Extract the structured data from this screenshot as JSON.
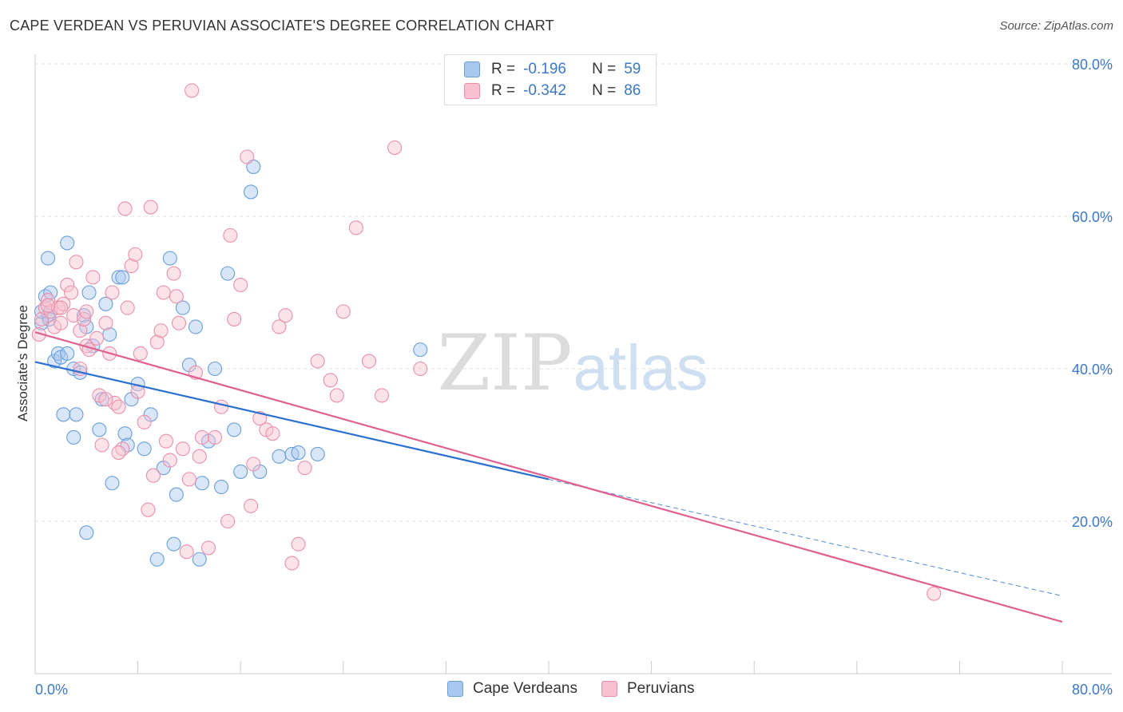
{
  "title": "CAPE VERDEAN VS PERUVIAN ASSOCIATE'S DEGREE CORRELATION CHART",
  "source": "Source: ZipAtlas.com",
  "watermark": {
    "zip": "ZIP",
    "atlas": "atlas"
  },
  "legend": {
    "r_label": "R =",
    "n_label": "N =",
    "rows": [
      {
        "r": "-0.196",
        "n": "59",
        "color": "#a8c8f0",
        "border": "#6a9fd8"
      },
      {
        "r": "-0.342",
        "n": "86",
        "color": "#f8c0d0",
        "border": "#e890aa"
      }
    ]
  },
  "bottom_legend": [
    {
      "label": "Cape Verdeans",
      "color": "#a8c8f0",
      "border": "#6a9fd8"
    },
    {
      "label": "Peruvians",
      "color": "#f8c0d0",
      "border": "#e890aa"
    }
  ],
  "chart_data": {
    "type": "scatter",
    "ylabel": "Associate's Degree",
    "xlim": [
      0,
      80
    ],
    "ylim": [
      0,
      80
    ],
    "x_tick_labels": [
      "0.0%",
      "80.0%"
    ],
    "y_ticks": [
      20,
      40,
      60,
      80
    ],
    "y_tick_labels": [
      "20.0%",
      "40.0%",
      "60.0%",
      "80.0%"
    ],
    "grid": true,
    "series": [
      {
        "name": "Cape Verdeans",
        "color": "#6a9fd8",
        "fill": "#a8c8f0",
        "line_color": "#2b6fd0",
        "trend": {
          "x0": 0,
          "y0": 40.9,
          "x1": 40,
          "y1": 25.5,
          "dash_to_x": 80,
          "dash_to_y": 10.2
        },
        "points": [
          [
            0.5,
            46
          ],
          [
            0.8,
            49.5
          ],
          [
            1,
            47
          ],
          [
            1.1,
            46.5
          ],
          [
            1.2,
            50
          ],
          [
            1.5,
            41
          ],
          [
            1,
            54.5
          ],
          [
            1.8,
            42
          ],
          [
            2,
            41.5
          ],
          [
            2.5,
            56.5
          ],
          [
            2.2,
            34
          ],
          [
            3,
            40
          ],
          [
            3.5,
            39.5
          ],
          [
            2.5,
            42
          ],
          [
            3.8,
            47
          ],
          [
            4,
            45.5
          ],
          [
            3.2,
            34
          ],
          [
            3,
            31
          ],
          [
            4.2,
            50
          ],
          [
            4.5,
            43
          ],
          [
            5,
            32
          ],
          [
            5.2,
            36
          ],
          [
            5.5,
            48.5
          ],
          [
            5.8,
            44.5
          ],
          [
            6,
            25
          ],
          [
            4,
            18.5
          ],
          [
            6.5,
            52
          ],
          [
            6.8,
            52
          ],
          [
            7,
            31.5
          ],
          [
            7.2,
            30
          ],
          [
            7.5,
            36
          ],
          [
            8,
            38
          ],
          [
            8.5,
            29.5
          ],
          [
            9,
            34
          ],
          [
            9.5,
            15
          ],
          [
            10,
            27
          ],
          [
            10.5,
            54.5
          ],
          [
            10.8,
            17
          ],
          [
            11,
            23.5
          ],
          [
            11.5,
            48
          ],
          [
            12,
            40.5
          ],
          [
            12.5,
            45.5
          ],
          [
            12.8,
            15
          ],
          [
            13,
            25
          ],
          [
            13.5,
            30.5
          ],
          [
            14,
            40
          ],
          [
            14.5,
            24.5
          ],
          [
            15,
            52.5
          ],
          [
            15.5,
            32
          ],
          [
            16,
            26.5
          ],
          [
            17,
            66.5
          ],
          [
            16.8,
            63.2
          ],
          [
            17.5,
            26.5
          ],
          [
            19,
            28.5
          ],
          [
            20,
            28.8
          ],
          [
            20.5,
            29
          ],
          [
            22,
            28.8
          ],
          [
            30,
            42.5
          ],
          [
            0.5,
            47.5
          ]
        ]
      },
      {
        "name": "Peruvians",
        "color": "#e890aa",
        "fill": "#f8c0d0",
        "line_color": "#e06090",
        "trend": {
          "x0": 0,
          "y0": 44.8,
          "x1": 80,
          "y1": 6.8
        },
        "points": [
          [
            0.3,
            44.5
          ],
          [
            0.5,
            46.5
          ],
          [
            0.8,
            48
          ],
          [
            1,
            49
          ],
          [
            1.2,
            47.5
          ],
          [
            1.5,
            45.5
          ],
          [
            1.8,
            48
          ],
          [
            2,
            46
          ],
          [
            2.2,
            48.5
          ],
          [
            2.5,
            51
          ],
          [
            2.8,
            50
          ],
          [
            3,
            47
          ],
          [
            3.2,
            54
          ],
          [
            3.5,
            45
          ],
          [
            3.8,
            46.5
          ],
          [
            4,
            43
          ],
          [
            4.2,
            42.5
          ],
          [
            4.5,
            52
          ],
          [
            4.8,
            44
          ],
          [
            5,
            36.5
          ],
          [
            5.2,
            30
          ],
          [
            5.5,
            46
          ],
          [
            5.8,
            42
          ],
          [
            6,
            50
          ],
          [
            6.2,
            35.5
          ],
          [
            6.5,
            35
          ],
          [
            6.8,
            29.5
          ],
          [
            7,
            61
          ],
          [
            7.2,
            48
          ],
          [
            7.5,
            53.5
          ],
          [
            7.8,
            55
          ],
          [
            8,
            37
          ],
          [
            8.2,
            42
          ],
          [
            8.5,
            33
          ],
          [
            8.8,
            21.5
          ],
          [
            9,
            61.2
          ],
          [
            9.2,
            26
          ],
          [
            9.5,
            43.5
          ],
          [
            9.8,
            45
          ],
          [
            10,
            50
          ],
          [
            10.2,
            30.5
          ],
          [
            10.5,
            28
          ],
          [
            10.8,
            52.5
          ],
          [
            11,
            49.5
          ],
          [
            11.2,
            46
          ],
          [
            11.5,
            29.5
          ],
          [
            11.8,
            16
          ],
          [
            12,
            25.5
          ],
          [
            12.2,
            76.5
          ],
          [
            12.5,
            39.5
          ],
          [
            12.8,
            28.5
          ],
          [
            13,
            31
          ],
          [
            13.5,
            16.5
          ],
          [
            14,
            31
          ],
          [
            14.5,
            35
          ],
          [
            15,
            20
          ],
          [
            15.2,
            57.5
          ],
          [
            15.5,
            46.5
          ],
          [
            16,
            51
          ],
          [
            16.5,
            67.8
          ],
          [
            16.8,
            22
          ],
          [
            17,
            27.5
          ],
          [
            17.5,
            33.5
          ],
          [
            18,
            32
          ],
          [
            18.5,
            31.5
          ],
          [
            19,
            45.5
          ],
          [
            19.5,
            47
          ],
          [
            20,
            14.5
          ],
          [
            20.5,
            17
          ],
          [
            21,
            27
          ],
          [
            22,
            41
          ],
          [
            23,
            38.5
          ],
          [
            23.5,
            36.5
          ],
          [
            24,
            47.5
          ],
          [
            25,
            58.5
          ],
          [
            26,
            41
          ],
          [
            27,
            36.5
          ],
          [
            28,
            69
          ],
          [
            70,
            10.5
          ],
          [
            30,
            40
          ],
          [
            4,
            47.5
          ],
          [
            2,
            48
          ],
          [
            1,
            48.3
          ],
          [
            6.5,
            29
          ],
          [
            5.5,
            36
          ],
          [
            3.5,
            40
          ]
        ]
      }
    ]
  }
}
